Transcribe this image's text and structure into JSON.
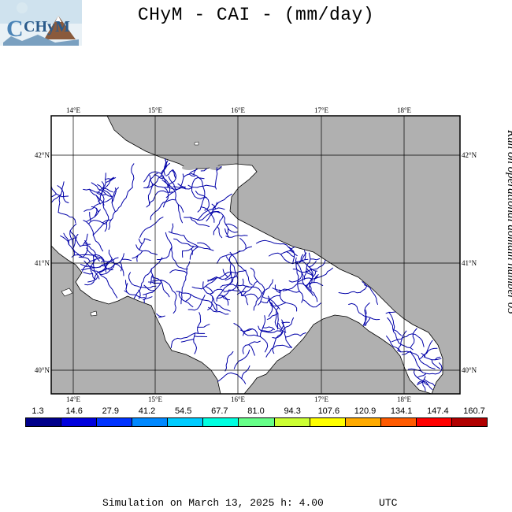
{
  "header": {
    "logo_text": "CHyM",
    "title": "CHyM - CAI - (mm/day)"
  },
  "side_note": "Run on operational domain number 05",
  "map": {
    "lon_labels": [
      "14°E",
      "15°E",
      "16°E",
      "17°E",
      "18°E"
    ],
    "lat_labels": [
      "42°N",
      "41°N",
      "40°N"
    ],
    "colors": {
      "sea": "#b0b0b0",
      "land": "#ffffff",
      "river": "#0000a8",
      "river_light": "#3aa0ff"
    }
  },
  "colorbar": {
    "values": [
      "1.3",
      "14.6",
      "27.9",
      "41.2",
      "54.5",
      "67.7",
      "81.0",
      "94.3",
      "107.6",
      "120.9",
      "134.1",
      "147.4",
      "160.7"
    ],
    "colors": [
      "#00008b",
      "#0000dd",
      "#0033ff",
      "#0088ff",
      "#00ccff",
      "#00ffe0",
      "#66ff88",
      "#ccff33",
      "#ffff00",
      "#ffaa00",
      "#ff5a00",
      "#ff0000",
      "#b00000"
    ]
  },
  "footer": {
    "text": "Simulation on March 13, 2025 h: 4.00         UTC"
  }
}
